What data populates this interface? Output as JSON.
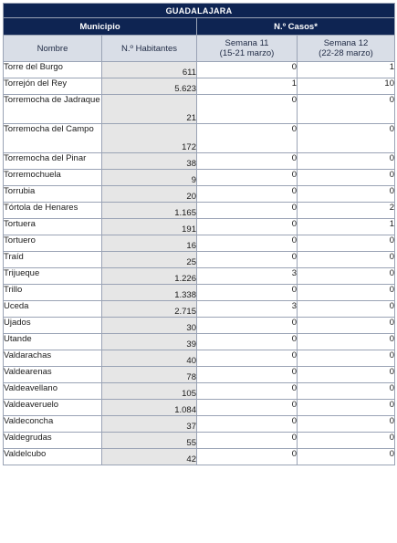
{
  "header": {
    "title": "GUADALAJARA",
    "municipio": "Municipio",
    "casos": "N.º Casos*",
    "nombre": "Nombre",
    "habitantes": "N.º Habitantes",
    "semana11": "Semana 11",
    "semana11_range": "(15-21 marzo)",
    "semana12": "Semana 12",
    "semana12_range": "(22-28 marzo)"
  },
  "rows": [
    {
      "nombre": "Torre del Burgo",
      "habitantes": "611",
      "s11": "0",
      "s12": "1"
    },
    {
      "nombre": "Torrejón del Rey",
      "habitantes": "5.623",
      "s11": "1",
      "s12": "10"
    },
    {
      "nombre": "Torremocha de Jadraque",
      "habitantes": "21",
      "s11": "0",
      "s12": "0"
    },
    {
      "nombre": "Torremocha del Campo",
      "habitantes": "172",
      "s11": "0",
      "s12": "0"
    },
    {
      "nombre": "Torremocha del Pinar",
      "habitantes": "38",
      "s11": "0",
      "s12": "0"
    },
    {
      "nombre": "Torremochuela",
      "habitantes": "9",
      "s11": "0",
      "s12": "0"
    },
    {
      "nombre": "Torrubia",
      "habitantes": "20",
      "s11": "0",
      "s12": "0"
    },
    {
      "nombre": "Tórtola de Henares",
      "habitantes": "1.165",
      "s11": "0",
      "s12": "2"
    },
    {
      "nombre": "Tortuera",
      "habitantes": "191",
      "s11": "0",
      "s12": "1"
    },
    {
      "nombre": "Tortuero",
      "habitantes": "16",
      "s11": "0",
      "s12": "0"
    },
    {
      "nombre": "Traíd",
      "habitantes": "25",
      "s11": "0",
      "s12": "0"
    },
    {
      "nombre": "Trijueque",
      "habitantes": "1.226",
      "s11": "3",
      "s12": "0"
    },
    {
      "nombre": "Trillo",
      "habitantes": "1.338",
      "s11": "0",
      "s12": "0"
    },
    {
      "nombre": "Uceda",
      "habitantes": "2.715",
      "s11": "3",
      "s12": "0"
    },
    {
      "nombre": "Ujados",
      "habitantes": "30",
      "s11": "0",
      "s12": "0"
    },
    {
      "nombre": "Utande",
      "habitantes": "39",
      "s11": "0",
      "s12": "0"
    },
    {
      "nombre": "Valdarachas",
      "habitantes": "40",
      "s11": "0",
      "s12": "0"
    },
    {
      "nombre": "Valdearenas",
      "habitantes": "78",
      "s11": "0",
      "s12": "0"
    },
    {
      "nombre": "Valdeavellano",
      "habitantes": "105",
      "s11": "0",
      "s12": "0"
    },
    {
      "nombre": "Valdeaveruelo",
      "habitantes": "1.084",
      "s11": "0",
      "s12": "0"
    },
    {
      "nombre": "Valdeconcha",
      "habitantes": "37",
      "s11": "0",
      "s12": "0"
    },
    {
      "nombre": "Valdegrudas",
      "habitantes": "55",
      "s11": "0",
      "s12": "0"
    },
    {
      "nombre": "Valdelcubo",
      "habitantes": "42",
      "s11": "0",
      "s12": "0"
    }
  ]
}
